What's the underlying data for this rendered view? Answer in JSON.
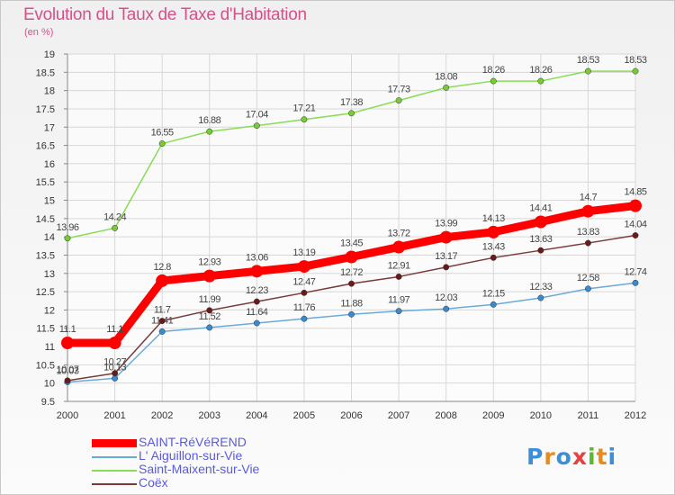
{
  "header": {
    "title": "Evolution du Taux de Taxe d'Habitation",
    "subtitle": "(en %)"
  },
  "logo": {
    "letters": [
      "P",
      "r",
      "o",
      "x",
      "i",
      "t",
      "i"
    ],
    "colors": [
      "#3a8fd8",
      "#e88a1e",
      "#3a8fd8",
      "#e84040",
      "#5cb82e",
      "#e88a1e",
      "#3a8fd8"
    ]
  },
  "chart_data": {
    "type": "line",
    "x": [
      "2000",
      "2001",
      "2002",
      "2003",
      "2004",
      "2005",
      "2006",
      "2007",
      "2008",
      "2009",
      "2010",
      "2011",
      "2012"
    ],
    "ylim": [
      9.5,
      19
    ],
    "yticks": [
      "9.5",
      "10",
      "10.5",
      "11",
      "11.5",
      "12",
      "12.5",
      "13",
      "13.5",
      "14",
      "14.5",
      "15",
      "15.5",
      "16",
      "16.5",
      "17",
      "17.5",
      "18",
      "18.5",
      "19"
    ],
    "grid": true,
    "legend_position": "bottom-left",
    "series": [
      {
        "name": "Saint-Maixent-sur-Vie",
        "color": "#88dd55",
        "marker": "#77cc33",
        "values": [
          13.96,
          14.24,
          16.55,
          16.88,
          17.04,
          17.21,
          17.38,
          17.73,
          18.08,
          18.26,
          18.26,
          18.53,
          18.53
        ],
        "labels": [
          "13.96",
          "14.24",
          "16.55",
          "16.88",
          "17.04",
          "17.21",
          "17.38",
          "17.73",
          "18.08",
          "18.26",
          "18.26",
          "18.53",
          "18.53"
        ]
      },
      {
        "name": "L' Aiguillon-sur-Vie",
        "color": "#6aaad8",
        "marker": "#3a8ad0",
        "values": [
          10.03,
          10.13,
          11.41,
          11.52,
          11.64,
          11.76,
          11.88,
          11.97,
          12.03,
          12.15,
          12.33,
          12.58,
          12.74
        ],
        "labels": [
          "10.03",
          "10.13",
          "11.41",
          "11.52",
          "11.64",
          "11.76",
          "11.88",
          "11.97",
          "12.03",
          "12.15",
          "12.33",
          "12.58",
          "12.74"
        ]
      },
      {
        "name": "Coëx",
        "color": "#7a3a3a",
        "marker": "#6a1a1a",
        "values": [
          10.07,
          10.27,
          11.7,
          11.99,
          12.23,
          12.47,
          12.72,
          12.91,
          13.17,
          13.43,
          13.63,
          13.83,
          14.04
        ],
        "labels": [
          "10.07",
          "10.27",
          "11.7",
          "11.99",
          "12.23",
          "12.47",
          "12.72",
          "12.91",
          "13.17",
          "13.43",
          "13.63",
          "13.83",
          "14.04"
        ]
      },
      {
        "name": "SAINT-RéVéREND",
        "color": "#ff0000",
        "marker": "#ff0000",
        "values": [
          11.1,
          11.1,
          12.8,
          12.93,
          13.06,
          13.19,
          13.45,
          13.72,
          13.99,
          14.13,
          14.41,
          14.7,
          14.85
        ],
        "labels": [
          "11.1",
          "11.1",
          "12.8",
          "12.93",
          "13.06",
          "13.19",
          "13.45",
          "13.72",
          "13.99",
          "14.13",
          "14.41",
          "14.7",
          "14.85"
        ]
      }
    ],
    "legend_order": [
      "SAINT-RéVéREND",
      "L' Aiguillon-sur-Vie",
      "Saint-Maixent-sur-Vie",
      "Coëx"
    ]
  }
}
